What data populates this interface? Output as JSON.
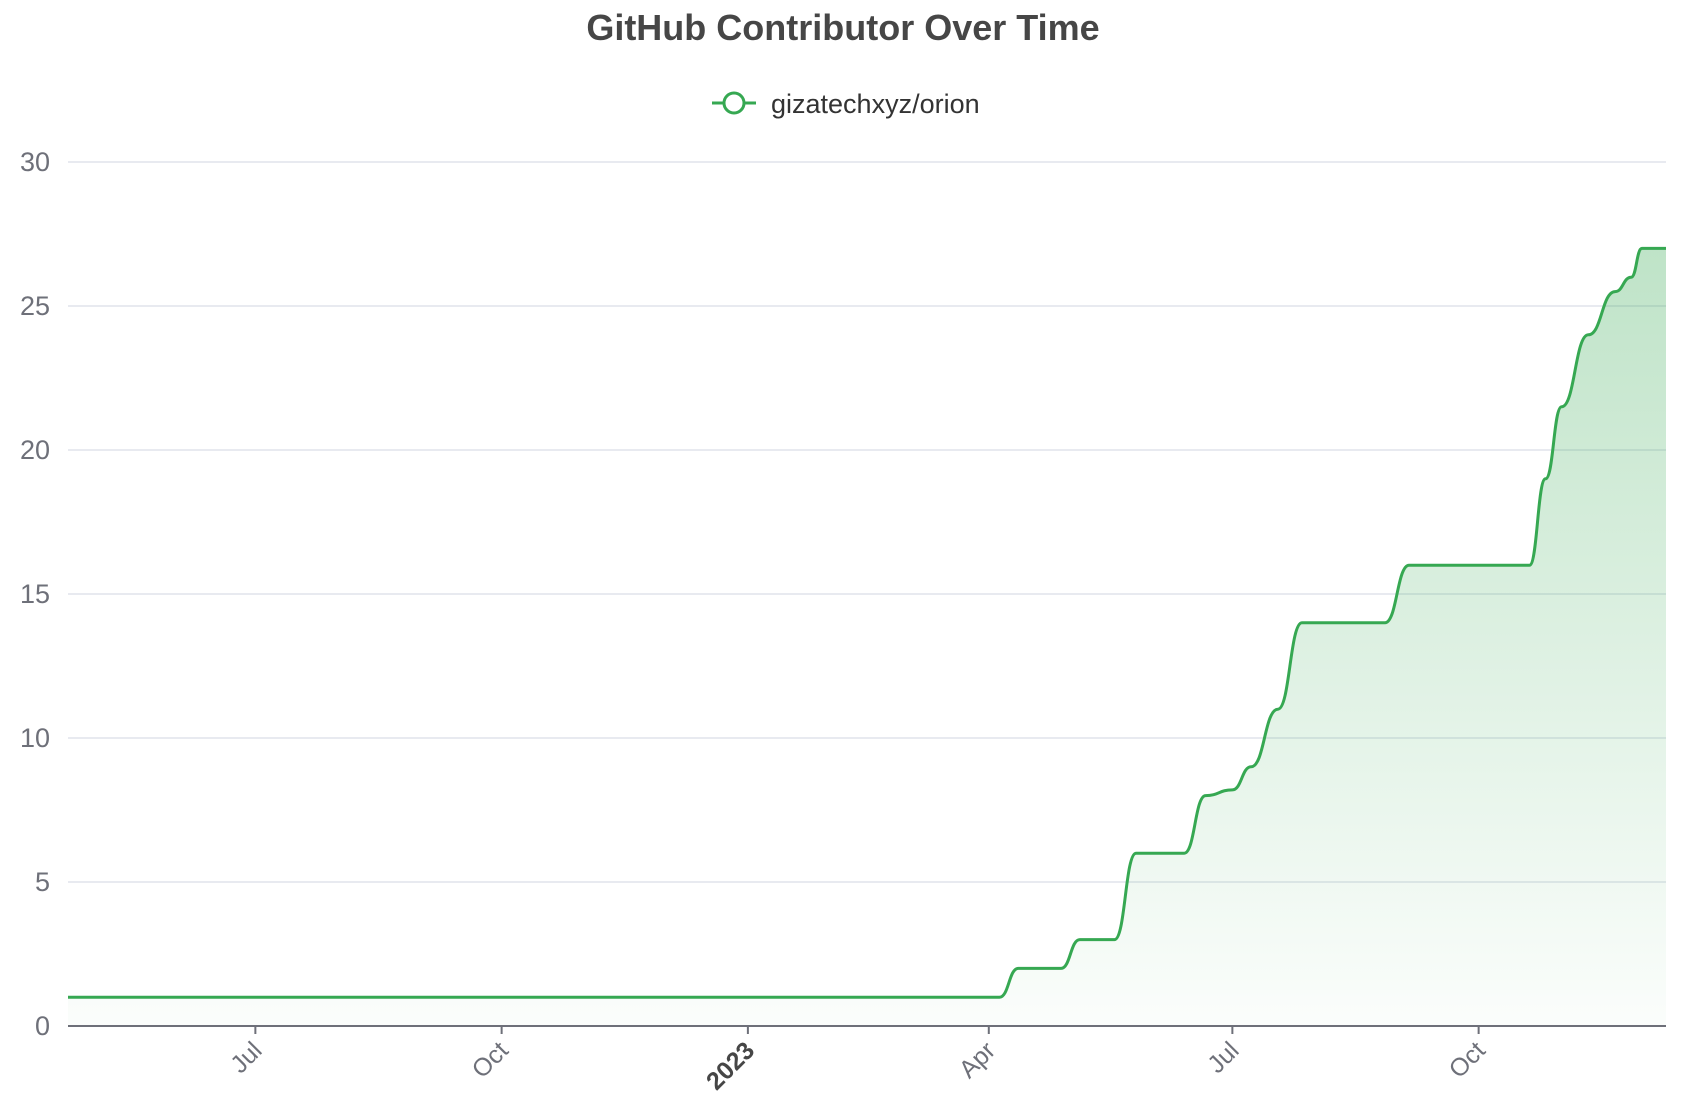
{
  "chart_data": {
    "type": "area",
    "title": "GitHub Contributor Over Time",
    "xlabel": "",
    "ylabel": "",
    "x_range": [
      "2022-04-22",
      "2023-12-10"
    ],
    "ylim": [
      0,
      30
    ],
    "yticks": [
      0,
      5,
      10,
      15,
      20,
      25,
      30
    ],
    "xticks": [
      {
        "date": "2022-07-01",
        "label": "Jul",
        "bold": false
      },
      {
        "date": "2022-10-01",
        "label": "Oct",
        "bold": false
      },
      {
        "date": "2023-01-01",
        "label": "2023",
        "bold": true
      },
      {
        "date": "2023-04-01",
        "label": "Apr",
        "bold": false
      },
      {
        "date": "2023-07-01",
        "label": "Jul",
        "bold": false
      },
      {
        "date": "2023-10-01",
        "label": "Oct",
        "bold": false
      }
    ],
    "grid": true,
    "legend_position": "top-center",
    "colors": {
      "line": "#36a852",
      "fill_top": "#36a852",
      "fill_bottom": "#ffffff"
    },
    "series": [
      {
        "name": "gizatechxyz/orion",
        "points": [
          {
            "x": "2022-04-22",
            "y": 1
          },
          {
            "x": "2023-04-05",
            "y": 1
          },
          {
            "x": "2023-04-12",
            "y": 2
          },
          {
            "x": "2023-04-28",
            "y": 2
          },
          {
            "x": "2023-05-05",
            "y": 3
          },
          {
            "x": "2023-05-18",
            "y": 3
          },
          {
            "x": "2023-05-26",
            "y": 6
          },
          {
            "x": "2023-06-13",
            "y": 6
          },
          {
            "x": "2023-06-21",
            "y": 8
          },
          {
            "x": "2023-07-01",
            "y": 8.2
          },
          {
            "x": "2023-07-08",
            "y": 9
          },
          {
            "x": "2023-07-18",
            "y": 11
          },
          {
            "x": "2023-07-27",
            "y": 14
          },
          {
            "x": "2023-08-27",
            "y": 14
          },
          {
            "x": "2023-09-05",
            "y": 16
          },
          {
            "x": "2023-10-20",
            "y": 16
          },
          {
            "x": "2023-10-26",
            "y": 19
          },
          {
            "x": "2023-11-01",
            "y": 21.5
          },
          {
            "x": "2023-11-11",
            "y": 24
          },
          {
            "x": "2023-11-21",
            "y": 25.5
          },
          {
            "x": "2023-11-27",
            "y": 26
          },
          {
            "x": "2023-12-01",
            "y": 27
          },
          {
            "x": "2023-12-10",
            "y": 27
          }
        ]
      }
    ]
  }
}
